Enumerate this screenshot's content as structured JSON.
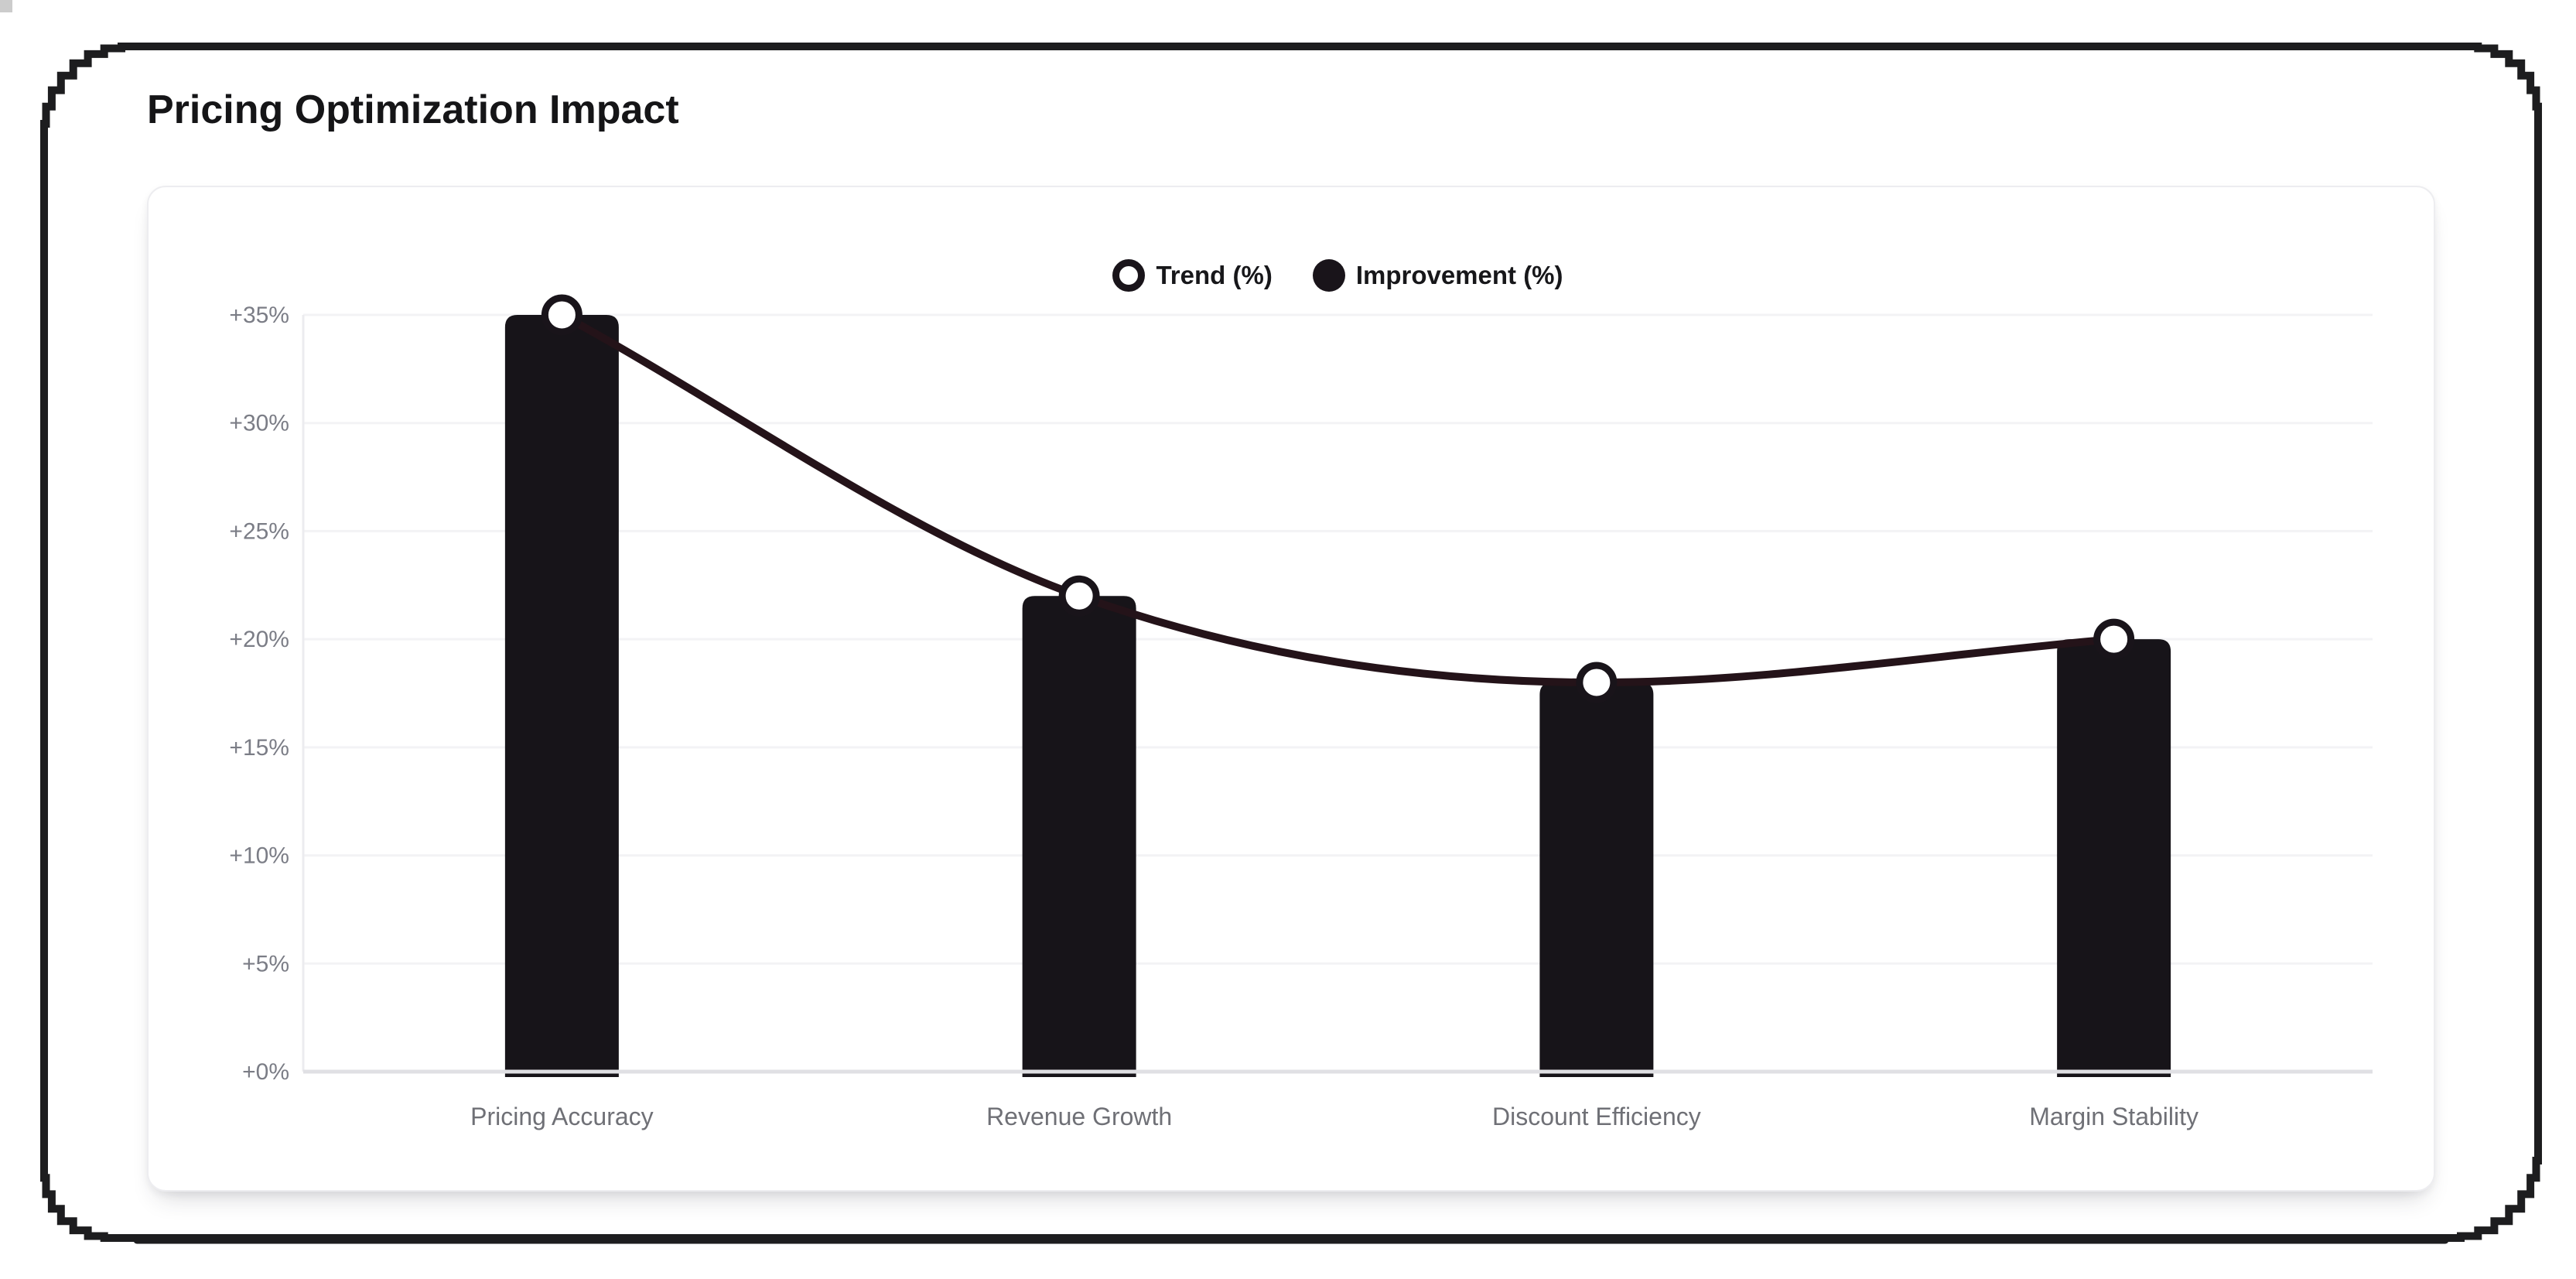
{
  "header": {
    "title": "Pricing Optimization Impact"
  },
  "chart_data": {
    "type": "bar",
    "subtype": "combo-bar-line",
    "title": "Pricing Optimization Impact",
    "categories": [
      "Pricing Accuracy",
      "Revenue Growth",
      "Discount Efficiency",
      "Margin Stability"
    ],
    "series": [
      {
        "name": "Trend (%)",
        "type": "line",
        "marker": "open-circle",
        "values": [
          35,
          22,
          18,
          20
        ]
      },
      {
        "name": "Improvement (%)",
        "type": "bar",
        "marker": "filled-circle",
        "values": [
          35,
          22,
          18,
          20
        ]
      }
    ],
    "xlabel": "",
    "ylabel": "",
    "ylim": [
      0,
      35
    ],
    "y_tick_step": 5,
    "y_ticks": [
      {
        "value": 0,
        "label": "+0%"
      },
      {
        "value": 5,
        "label": "+5%"
      },
      {
        "value": 10,
        "label": "+10%"
      },
      {
        "value": 15,
        "label": "+15%"
      },
      {
        "value": 20,
        "label": "+20%"
      },
      {
        "value": 25,
        "label": "+25%"
      },
      {
        "value": 30,
        "label": "+30%"
      },
      {
        "value": 35,
        "label": "+35%"
      }
    ],
    "grid": "horizontal",
    "legend_position": "top-center",
    "colors": {
      "bar": "#171419",
      "line": "#241319",
      "marker_fill": "#ffffff",
      "marker_ring": "#19141a",
      "gridline": "#f3f3f5",
      "axis_line": "#e0e0e4",
      "y_axis_line": "#ececef",
      "tick_text": "#7b7d86",
      "category_text": "#6f7076",
      "title_text": "#151517",
      "frame": "#1d1d1f"
    }
  }
}
